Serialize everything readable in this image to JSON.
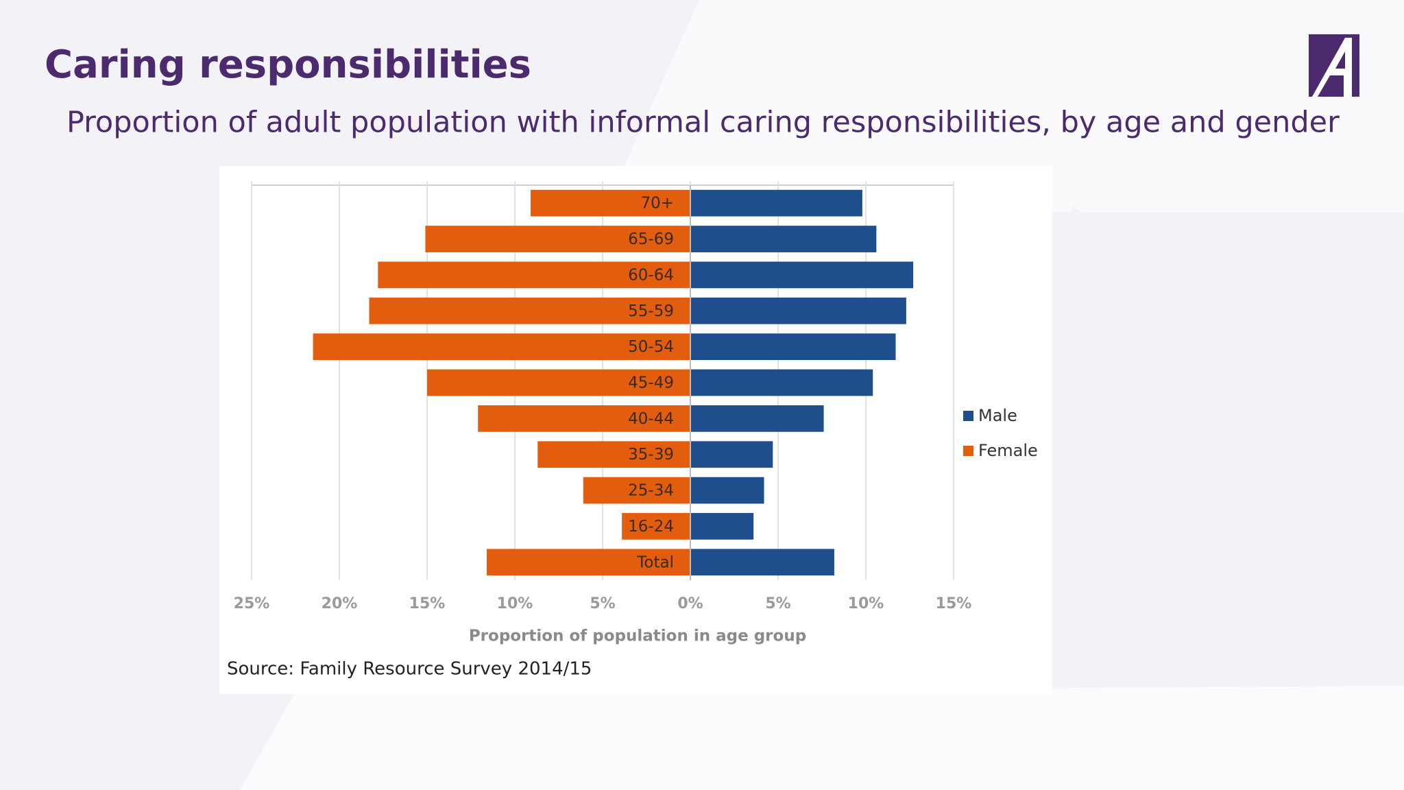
{
  "header": {
    "title": "Caring responsibilities",
    "subtitle": "Proportion of adult population with informal caring responsibilities, by age and gender"
  },
  "chart_data": {
    "type": "bar",
    "orientation": "horizontal",
    "stacking": "diverging",
    "categories": [
      "70+",
      "65-69",
      "60-64",
      "55-59",
      "50-54",
      "45-49",
      "40-44",
      "35-39",
      "25-34",
      "16-24",
      "Total"
    ],
    "series": [
      {
        "name": "Male",
        "color": "#1f4e8c",
        "values": [
          9.8,
          10.6,
          12.7,
          12.3,
          11.7,
          10.4,
          7.6,
          4.7,
          4.2,
          3.6,
          8.2
        ]
      },
      {
        "name": "Female",
        "color": "#e35d0e",
        "values": [
          -9.1,
          -15.1,
          -17.8,
          -18.3,
          -21.5,
          -15.0,
          -12.1,
          -8.7,
          -6.1,
          -3.9,
          -11.6
        ]
      }
    ],
    "xlim": [
      -25,
      15
    ],
    "xticks": [
      {
        "value": -25,
        "label": "25%"
      },
      {
        "value": -20,
        "label": "20%"
      },
      {
        "value": -15,
        "label": "15%"
      },
      {
        "value": -10,
        "label": "10%"
      },
      {
        "value": -5,
        "label": "5%"
      },
      {
        "value": 0,
        "label": "0%"
      },
      {
        "value": 5,
        "label": "5%"
      },
      {
        "value": 10,
        "label": "10%"
      },
      {
        "value": 15,
        "label": "15%"
      }
    ],
    "xlabel": "Proportion of population in age group",
    "source": "Source: Family Resource Survey 2014/15",
    "grid": true,
    "legend": "right"
  }
}
